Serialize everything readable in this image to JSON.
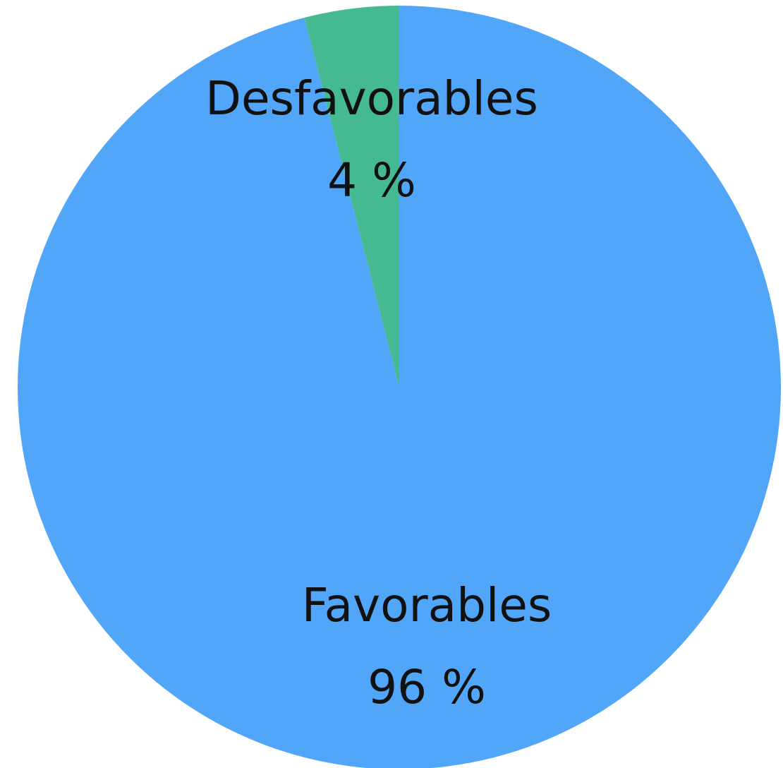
{
  "chart_data": {
    "type": "pie",
    "start_angle": "12 o'clock",
    "direction": "clockwise",
    "slices": [
      {
        "label": "Favorables",
        "value": 96,
        "value_label": "96 %",
        "color": "#52A6F9"
      },
      {
        "label": "Desfavorables",
        "value": 4,
        "value_label": "4 %",
        "color": "#45B992"
      }
    ]
  }
}
